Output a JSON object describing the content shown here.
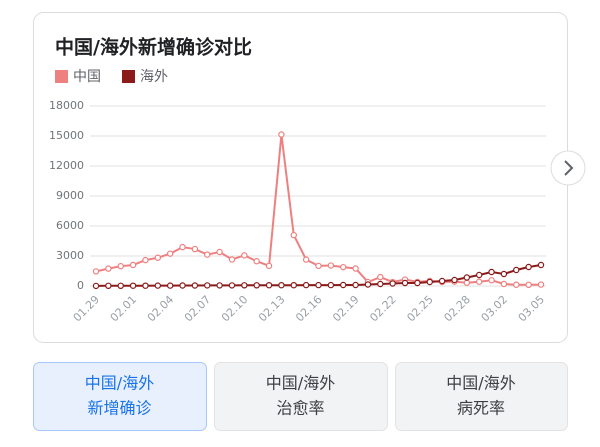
{
  "chart_data": {
    "type": "line",
    "title": "中国/海外新增确诊对比",
    "categories": [
      "01.29",
      null,
      null,
      "02.01",
      null,
      null,
      "02.04",
      null,
      null,
      "02.07",
      null,
      null,
      "02.10",
      null,
      null,
      "02.13",
      null,
      null,
      "02.16",
      null,
      null,
      "02.19",
      null,
      null,
      "02.22",
      null,
      null,
      "02.25",
      null,
      null,
      "02.28",
      null,
      null,
      "03.02",
      null,
      null,
      "03.05"
    ],
    "series": [
      {
        "name": "中国",
        "color": "#ee8080",
        "values": [
          1459,
          1737,
          1982,
          2102,
          2590,
          2829,
          3235,
          3887,
          3694,
          3143,
          3399,
          2656,
          3062,
          2478,
          2015,
          15152,
          5090,
          2641,
          2009,
          2048,
          1886,
          1749,
          394,
          889,
          397,
          648,
          409,
          508,
          406,
          433,
          327,
          427,
          573,
          202,
          125,
          119,
          139
        ]
      },
      {
        "name": "海外",
        "color": "#8b1a1a",
        "values": [
          10,
          20,
          20,
          30,
          30,
          40,
          40,
          50,
          50,
          60,
          60,
          60,
          70,
          70,
          80,
          80,
          80,
          90,
          90,
          90,
          100,
          100,
          150,
          200,
          250,
          300,
          300,
          400,
          500,
          600,
          850,
          1100,
          1400,
          1200,
          1600,
          1900,
          2100
        ]
      }
    ],
    "ylim": [
      0,
      18000
    ],
    "yticks": [
      0,
      3000,
      6000,
      9000,
      12000,
      15000,
      18000
    ],
    "grid": true
  },
  "tabs": [
    {
      "lines": [
        "中国/海外",
        "新增确诊"
      ],
      "selected": true
    },
    {
      "lines": [
        "中国/海外",
        "治愈率"
      ],
      "selected": false
    },
    {
      "lines": [
        "中国/海外",
        "病死率"
      ],
      "selected": false
    }
  ]
}
